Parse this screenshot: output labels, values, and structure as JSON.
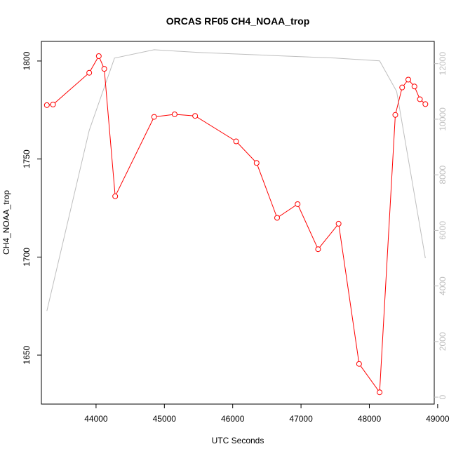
{
  "chart_data": {
    "type": "line",
    "title": "ORCAS RF05 CH4_NOAA_trop",
    "xlabel": "UTC Seconds",
    "ylabel": "CH4_NOAA_trop",
    "xlim": [
      43200,
      48950
    ],
    "ylim": [
      1625,
      1810
    ],
    "x_ticks": [
      44000,
      45000,
      46000,
      47000,
      48000,
      49000
    ],
    "y_ticks": [
      1650,
      1700,
      1750,
      1800
    ],
    "y2lim": [
      -250,
      12800
    ],
    "y2_ticks": [
      0,
      2000,
      4000,
      6000,
      8000,
      10000,
      12000
    ],
    "grid": false,
    "colors": {
      "primary": "#ff0000",
      "secondary": "#bebebe"
    },
    "series": [
      {
        "axis": "left",
        "style": "line+points",
        "x": [
          43280,
          43370,
          43900,
          44040,
          44120,
          44280,
          44850,
          45150,
          45450,
          46050,
          46350,
          46650,
          46950,
          47250,
          47550,
          47850,
          48150,
          48380,
          48480,
          48570,
          48660,
          48740,
          48820
        ],
        "y": [
          1777.5,
          1777.8,
          1794,
          1802.5,
          1796,
          1731,
          1771.5,
          1772.8,
          1772,
          1759,
          1748,
          1720,
          1727,
          1704,
          1717,
          1645.5,
          1631,
          1772.5,
          1786.5,
          1790.5,
          1787,
          1780.5,
          1778
        ]
      },
      {
        "axis": "right",
        "style": "line",
        "x": [
          43280,
          43900,
          44270,
          44850,
          45500,
          46500,
          47500,
          48150,
          48400,
          48820
        ],
        "y": [
          3100,
          9600,
          12200,
          12500,
          12400,
          12300,
          12200,
          12100,
          11000,
          5000
        ]
      }
    ]
  }
}
